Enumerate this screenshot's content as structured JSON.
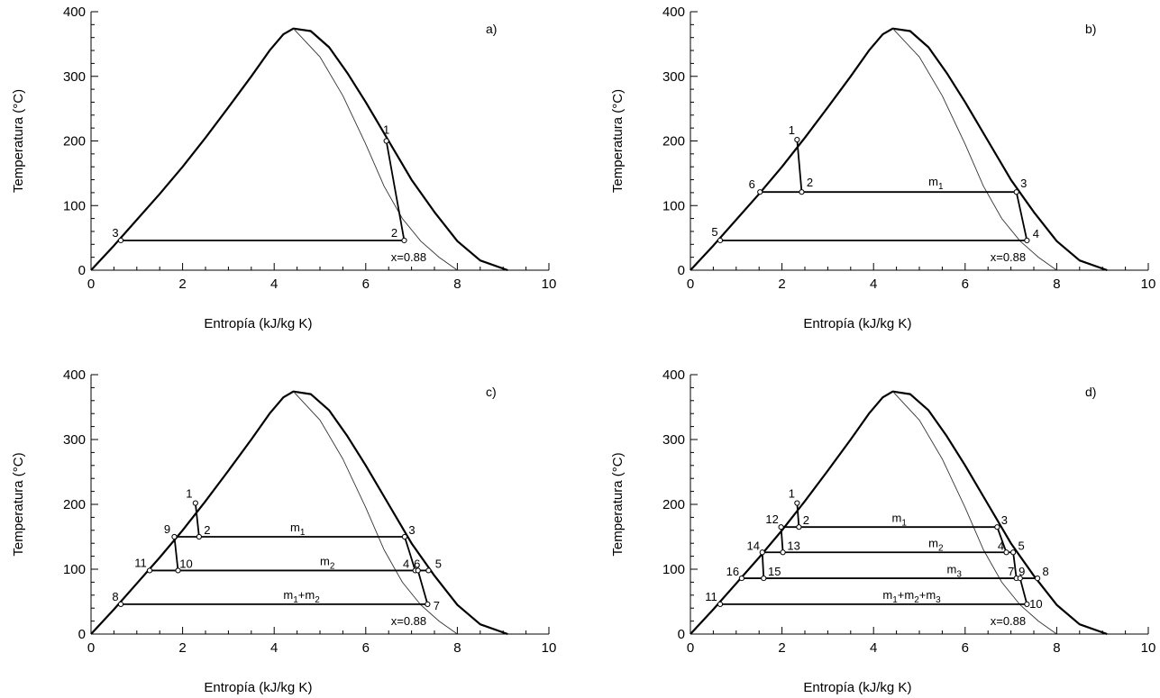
{
  "chart_data": [
    {
      "type": "line",
      "panel_label": "a)",
      "xlabel": "Entropía (kJ/kg K)",
      "ylabel": "Temperatura (°C)",
      "xlim": [
        0,
        10
      ],
      "ylim": [
        0,
        400
      ],
      "xticks": [
        "0",
        "2",
        "4",
        "6",
        "8",
        "10"
      ],
      "yticks": [
        "0",
        "100",
        "200",
        "300",
        "400"
      ],
      "grid": false,
      "quality_curve": {
        "label": "x=0.88",
        "points": [
          [
            4.42,
            374
          ],
          [
            5.0,
            330
          ],
          [
            5.5,
            270
          ],
          [
            6.0,
            195
          ],
          [
            6.4,
            130
          ],
          [
            6.8,
            80
          ],
          [
            7.2,
            45
          ],
          [
            7.6,
            20
          ],
          [
            8.0,
            0
          ]
        ]
      },
      "states": [
        {
          "id": "1",
          "s": 6.45,
          "T": 200
        },
        {
          "id": "2",
          "s": 6.84,
          "T": 46
        },
        {
          "id": "3",
          "s": 0.65,
          "T": 46
        }
      ],
      "paths": [
        [
          "1",
          "2"
        ],
        [
          "2",
          "3"
        ]
      ],
      "mass_labels": []
    },
    {
      "type": "line",
      "panel_label": "b)",
      "xlabel": "Entropía (kJ/kg K)",
      "ylabel": "Temperatura (°C)",
      "xlim": [
        0,
        10
      ],
      "ylim": [
        0,
        400
      ],
      "xticks": [
        "0",
        "2",
        "4",
        "6",
        "8",
        "10"
      ],
      "yticks": [
        "0",
        "100",
        "200",
        "300",
        "400"
      ],
      "grid": false,
      "quality_curve": {
        "label": "x=0.88",
        "points": [
          [
            4.42,
            374
          ],
          [
            5.0,
            330
          ],
          [
            5.5,
            270
          ],
          [
            6.0,
            195
          ],
          [
            6.4,
            130
          ],
          [
            6.8,
            80
          ],
          [
            7.2,
            45
          ],
          [
            7.6,
            20
          ],
          [
            8.0,
            0
          ]
        ]
      },
      "states": [
        {
          "id": "1",
          "s": 2.33,
          "T": 202
        },
        {
          "id": "2",
          "s": 2.43,
          "T": 121
        },
        {
          "id": "3",
          "s": 7.12,
          "T": 121
        },
        {
          "id": "4",
          "s": 7.35,
          "T": 46
        },
        {
          "id": "5",
          "s": 0.65,
          "T": 46
        },
        {
          "id": "6",
          "s": 1.52,
          "T": 121
        }
      ],
      "paths": [
        [
          "1",
          "2"
        ],
        [
          "6",
          "3"
        ],
        [
          "3",
          "4"
        ],
        [
          "5",
          "4"
        ]
      ],
      "mass_labels": [
        {
          "base": "m",
          "sub": "1",
          "s": 5.2,
          "T": 131
        }
      ]
    },
    {
      "type": "line",
      "panel_label": "c)",
      "xlabel": "Entropía (kJ/kg K)",
      "ylabel": "Temperatura (°C)",
      "xlim": [
        0,
        10
      ],
      "ylim": [
        0,
        400
      ],
      "xticks": [
        "0",
        "2",
        "4",
        "6",
        "8",
        "10"
      ],
      "yticks": [
        "0",
        "100",
        "200",
        "300",
        "400"
      ],
      "grid": false,
      "quality_curve": {
        "label": "x=0.88",
        "points": [
          [
            4.42,
            374
          ],
          [
            5.0,
            330
          ],
          [
            5.5,
            270
          ],
          [
            6.0,
            195
          ],
          [
            6.4,
            130
          ],
          [
            6.8,
            80
          ],
          [
            7.2,
            45
          ],
          [
            7.6,
            20
          ],
          [
            8.0,
            0
          ]
        ]
      },
      "states": [
        {
          "id": "1",
          "s": 2.28,
          "T": 202
        },
        {
          "id": "2",
          "s": 2.36,
          "T": 150
        },
        {
          "id": "3",
          "s": 6.85,
          "T": 150
        },
        {
          "id": "4",
          "s": 7.08,
          "T": 98
        },
        {
          "id": "5",
          "s": 7.37,
          "T": 98
        },
        {
          "id": "6",
          "s": 7.14,
          "T": 98
        },
        {
          "id": "7",
          "s": 7.35,
          "T": 46
        },
        {
          "id": "8",
          "s": 0.65,
          "T": 46
        },
        {
          "id": "9",
          "s": 1.82,
          "T": 150
        },
        {
          "id": "10",
          "s": 1.9,
          "T": 98
        },
        {
          "id": "11",
          "s": 1.28,
          "T": 98
        }
      ],
      "paths": [
        [
          "1",
          "2"
        ],
        [
          "9",
          "3"
        ],
        [
          "3",
          "4"
        ],
        [
          "11",
          "5"
        ],
        [
          "6",
          "7"
        ],
        [
          "8",
          "7"
        ],
        [
          "9",
          "10"
        ]
      ],
      "mass_labels": [
        {
          "base": "m",
          "sub": "1",
          "s": 4.35,
          "T": 158
        },
        {
          "base": "m",
          "sub": "2",
          "s": 5.0,
          "T": 106
        },
        {
          "base": "m",
          "sub": "1",
          "s": 4.2,
          "T": 54,
          "tail": "+m",
          "sub2": "2"
        }
      ]
    },
    {
      "type": "line",
      "panel_label": "d)",
      "xlabel": "Entropía (kJ/kg K)",
      "ylabel": "Temperatura (°C)",
      "xlim": [
        0,
        10
      ],
      "ylim": [
        0,
        400
      ],
      "xticks": [
        "0",
        "2",
        "4",
        "6",
        "8",
        "10"
      ],
      "yticks": [
        "0",
        "100",
        "200",
        "300",
        "400"
      ],
      "grid": false,
      "quality_curve": {
        "label": "x=0.88",
        "points": [
          [
            4.42,
            374
          ],
          [
            5.0,
            330
          ],
          [
            5.5,
            270
          ],
          [
            6.0,
            195
          ],
          [
            6.4,
            130
          ],
          [
            6.8,
            80
          ],
          [
            7.2,
            45
          ],
          [
            7.6,
            20
          ],
          [
            8.0,
            0
          ]
        ]
      },
      "states": [
        {
          "id": "1",
          "s": 2.33,
          "T": 202
        },
        {
          "id": "2",
          "s": 2.37,
          "T": 165
        },
        {
          "id": "3",
          "s": 6.7,
          "T": 165
        },
        {
          "id": "4",
          "s": 6.9,
          "T": 126
        },
        {
          "id": "5",
          "s": 7.05,
          "T": 126
        },
        {
          "id": "7",
          "s": 7.12,
          "T": 86
        },
        {
          "id": "8",
          "s": 7.58,
          "T": 86
        },
        {
          "id": "9",
          "s": 7.2,
          "T": 86
        },
        {
          "id": "10",
          "s": 7.35,
          "T": 46
        },
        {
          "id": "11",
          "s": 0.65,
          "T": 46
        },
        {
          "id": "12",
          "s": 1.98,
          "T": 165
        },
        {
          "id": "13",
          "s": 2.02,
          "T": 126
        },
        {
          "id": "14",
          "s": 1.57,
          "T": 126
        },
        {
          "id": "15",
          "s": 1.6,
          "T": 86
        },
        {
          "id": "16",
          "s": 1.12,
          "T": 86
        }
      ],
      "paths": [
        [
          "1",
          "2"
        ],
        [
          "12",
          "3"
        ],
        [
          "3",
          "4"
        ],
        [
          "14",
          "5"
        ],
        [
          "5",
          "7"
        ],
        [
          "16",
          "8"
        ],
        [
          "9",
          "10"
        ],
        [
          "11",
          "10"
        ],
        [
          "12",
          "13"
        ],
        [
          "14",
          "15"
        ]
      ],
      "mass_labels": [
        {
          "base": "m",
          "sub": "1",
          "s": 4.4,
          "T": 173
        },
        {
          "base": "m",
          "sub": "2",
          "s": 5.2,
          "T": 134
        },
        {
          "base": "m",
          "sub": "3",
          "s": 5.6,
          "T": 94
        },
        {
          "base": "m",
          "sub": "1",
          "s": 4.2,
          "T": 54,
          "tail": "+m",
          "sub2": "2",
          "tail2": "+m",
          "sub3": "3"
        }
      ]
    }
  ],
  "saturation_dome": {
    "points": [
      [
        0,
        0
      ],
      [
        0.5,
        38
      ],
      [
        1.0,
        78
      ],
      [
        1.5,
        118
      ],
      [
        2.0,
        160
      ],
      [
        2.5,
        205
      ],
      [
        3.0,
        252
      ],
      [
        3.5,
        300
      ],
      [
        3.9,
        340
      ],
      [
        4.2,
        365
      ],
      [
        4.42,
        374
      ],
      [
        4.8,
        370
      ],
      [
        5.2,
        345
      ],
      [
        5.6,
        305
      ],
      [
        6.0,
        260
      ],
      [
        6.5,
        200
      ],
      [
        7.0,
        140
      ],
      [
        7.5,
        90
      ],
      [
        8.0,
        45
      ],
      [
        8.5,
        15
      ],
      [
        9.1,
        0
      ]
    ]
  }
}
